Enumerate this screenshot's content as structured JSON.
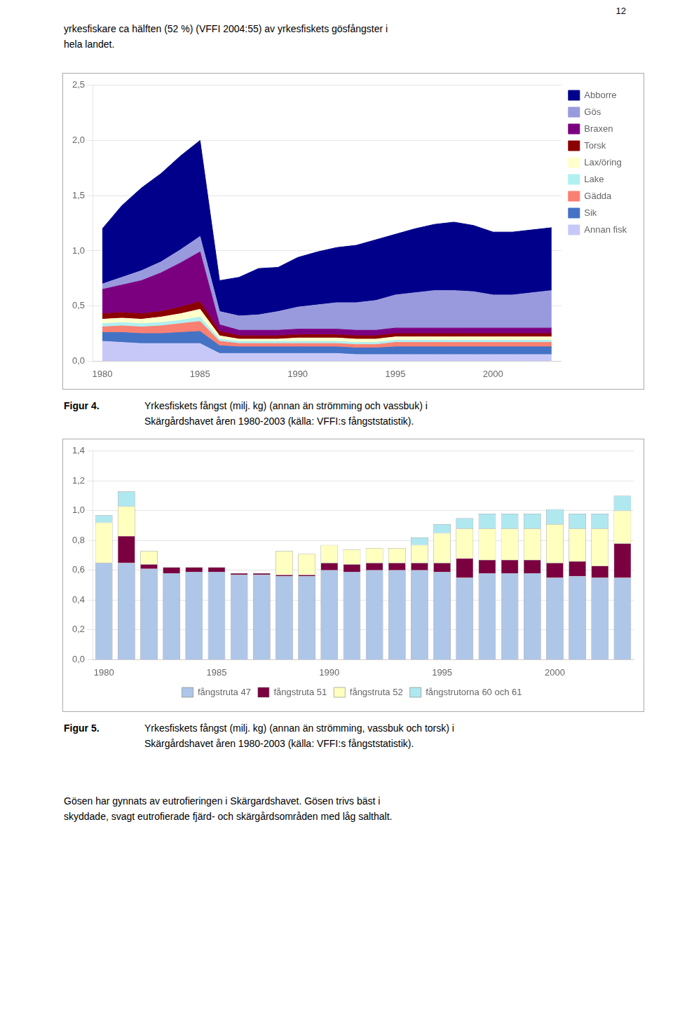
{
  "annotations": [
    "12",
    "yrkesfiskare ca hälften (52 %) (VFFI 2004:55) av yrkesfiskets gösfångster i",
    "hela landet.",
    "Gösen har gynnats av eutrofieringen i Skärgardshavet. Gösen trivs bäst i",
    "skyddade, svagt eutrofierade fjärd- och skärgårdsområden med låg salthalt."
  ],
  "chart_data": [
    {
      "type": "area",
      "title": "Figur 4.",
      "subtitle": "Yrkesfiskets fångst (milj. kg) (annan än strömming och vassbuk) i\nSkärgårdshavet åren 1980-2003 (källa: VFFI:s fångststatistik).",
      "x": [
        1980,
        1981,
        1982,
        1983,
        1984,
        1985,
        1986,
        1987,
        1988,
        1989,
        1990,
        1991,
        1992,
        1993,
        1994,
        1995,
        1996,
        1997,
        1998,
        1999,
        2000,
        2001,
        2002,
        2003
      ],
      "xlim": [
        1979.5,
        2003.5
      ],
      "xticks": [
        1980,
        1985,
        1990,
        1995,
        2000
      ],
      "ylim": [
        0,
        2.5
      ],
      "yticks": [
        {
          "value": 0.0,
          "label": "0,0"
        },
        {
          "value": 0.5,
          "label": "0,5"
        },
        {
          "value": 1.0,
          "label": "1,0"
        },
        {
          "value": 1.5,
          "label": "1,5"
        },
        {
          "value": 2.0,
          "label": "2,0"
        },
        {
          "value": 2.5,
          "label": "2,5"
        }
      ],
      "stacked": true,
      "grid": true,
      "legend": "right",
      "series": [
        {
          "name": "Annan fisk",
          "color": "#c8c8f8",
          "values": [
            0.18,
            0.17,
            0.16,
            0.16,
            0.16,
            0.16,
            0.07,
            0.07,
            0.07,
            0.07,
            0.07,
            0.07,
            0.07,
            0.06,
            0.06,
            0.06,
            0.06,
            0.06,
            0.06,
            0.06,
            0.06,
            0.06,
            0.06,
            0.06
          ]
        },
        {
          "name": "Sik",
          "color": "#4472c4",
          "values": [
            0.08,
            0.09,
            0.09,
            0.09,
            0.1,
            0.11,
            0.07,
            0.06,
            0.06,
            0.06,
            0.06,
            0.06,
            0.06,
            0.06,
            0.06,
            0.07,
            0.07,
            0.07,
            0.07,
            0.07,
            0.07,
            0.07,
            0.07,
            0.07
          ]
        },
        {
          "name": "Gädda",
          "color": "#FA8072",
          "values": [
            0.05,
            0.06,
            0.06,
            0.07,
            0.08,
            0.09,
            0.04,
            0.03,
            0.03,
            0.03,
            0.03,
            0.03,
            0.03,
            0.03,
            0.03,
            0.04,
            0.04,
            0.04,
            0.04,
            0.04,
            0.04,
            0.04,
            0.04,
            0.04
          ]
        },
        {
          "name": "Lake",
          "color": "#b0f0f0",
          "values": [
            0.03,
            0.03,
            0.03,
            0.03,
            0.03,
            0.04,
            0.02,
            0.02,
            0.02,
            0.02,
            0.02,
            0.02,
            0.02,
            0.02,
            0.02,
            0.02,
            0.02,
            0.02,
            0.02,
            0.02,
            0.02,
            0.02,
            0.02,
            0.02
          ]
        },
        {
          "name": "Lax/öring",
          "color": "#ffffcc",
          "values": [
            0.04,
            0.04,
            0.04,
            0.05,
            0.06,
            0.07,
            0.03,
            0.02,
            0.02,
            0.02,
            0.03,
            0.03,
            0.03,
            0.03,
            0.03,
            0.03,
            0.03,
            0.03,
            0.03,
            0.03,
            0.03,
            0.03,
            0.03,
            0.03
          ]
        },
        {
          "name": "Torsk",
          "color": "#8B0000",
          "values": [
            0.05,
            0.05,
            0.05,
            0.05,
            0.06,
            0.07,
            0.04,
            0.03,
            0.03,
            0.03,
            0.03,
            0.03,
            0.03,
            0.03,
            0.03,
            0.03,
            0.03,
            0.03,
            0.03,
            0.03,
            0.03,
            0.03,
            0.03,
            0.03
          ]
        },
        {
          "name": "Braxen",
          "color": "#7B0080",
          "values": [
            0.22,
            0.25,
            0.3,
            0.35,
            0.4,
            0.45,
            0.06,
            0.05,
            0.05,
            0.05,
            0.05,
            0.05,
            0.05,
            0.05,
            0.05,
            0.05,
            0.05,
            0.05,
            0.05,
            0.05,
            0.05,
            0.05,
            0.05,
            0.05
          ]
        },
        {
          "name": "Gös",
          "color": "#9999dd",
          "values": [
            0.05,
            0.07,
            0.09,
            0.1,
            0.12,
            0.14,
            0.12,
            0.13,
            0.14,
            0.17,
            0.2,
            0.22,
            0.24,
            0.25,
            0.27,
            0.3,
            0.32,
            0.34,
            0.34,
            0.33,
            0.3,
            0.3,
            0.32,
            0.34
          ]
        },
        {
          "name": "Abborre",
          "color": "#00008B",
          "values": [
            0.5,
            0.65,
            0.75,
            0.8,
            0.85,
            0.87,
            0.28,
            0.35,
            0.42,
            0.4,
            0.45,
            0.48,
            0.5,
            0.52,
            0.55,
            0.55,
            0.58,
            0.6,
            0.62,
            0.6,
            0.57,
            0.57,
            0.57,
            0.57
          ]
        }
      ]
    },
    {
      "type": "bar",
      "title": "Figur 5.",
      "subtitle": "Yrkesfiskets fångst (milj. kg) (annan än strömming, vassbuk och torsk) i\nSkärgårdshavet åren 1980-2003 (källa: VFFI:s fångststatistik).",
      "x": [
        1980,
        1981,
        1982,
        1983,
        1984,
        1985,
        1986,
        1987,
        1988,
        1989,
        1990,
        1991,
        1992,
        1993,
        1994,
        1995,
        1996,
        1997,
        1998,
        1999,
        2000,
        2001,
        2002,
        2003
      ],
      "xlim": [
        1979.5,
        2003.5
      ],
      "xticks": [
        1980,
        1985,
        1990,
        1995,
        2000
      ],
      "ylim": [
        0,
        1.4
      ],
      "yticks": [
        {
          "value": 0.0,
          "label": "0,0"
        },
        {
          "value": 0.2,
          "label": "0,2"
        },
        {
          "value": 0.4,
          "label": "0,4"
        },
        {
          "value": 0.6,
          "label": "0,6"
        },
        {
          "value": 0.8,
          "label": "0,8"
        },
        {
          "value": 1.0,
          "label": "1,0"
        },
        {
          "value": 1.2,
          "label": "1,2"
        },
        {
          "value": 1.4,
          "label": "1,4"
        }
      ],
      "stacked": true,
      "grid": true,
      "legend": "bottom",
      "series": [
        {
          "name": "fångstruta 47",
          "color": "#aec6e8",
          "values": [
            0.65,
            0.65,
            0.61,
            0.58,
            0.59,
            0.59,
            0.57,
            0.57,
            0.56,
            0.56,
            0.6,
            0.59,
            0.6,
            0.6,
            0.6,
            0.59,
            0.55,
            0.58,
            0.58,
            0.58,
            0.55,
            0.56,
            0.55,
            0.55
          ]
        },
        {
          "name": "fångstruta 51",
          "color": "#7B0040",
          "values": [
            0.0,
            0.18,
            0.03,
            0.04,
            0.03,
            0.03,
            0.01,
            0.01,
            0.01,
            0.01,
            0.05,
            0.05,
            0.05,
            0.05,
            0.05,
            0.06,
            0.13,
            0.09,
            0.09,
            0.09,
            0.1,
            0.1,
            0.08,
            0.23
          ]
        },
        {
          "name": "fångstruta 52",
          "color": "#ffffc0",
          "values": [
            0.27,
            0.2,
            0.09,
            0.0,
            0.0,
            0.0,
            0.0,
            0.0,
            0.16,
            0.14,
            0.12,
            0.1,
            0.1,
            0.1,
            0.12,
            0.2,
            0.2,
            0.21,
            0.21,
            0.21,
            0.26,
            0.22,
            0.25,
            0.22
          ]
        },
        {
          "name": "fångstrutorna 60 och 61",
          "color": "#b0e8f0",
          "values": [
            0.05,
            0.1,
            0.0,
            0.0,
            0.0,
            0.0,
            0.0,
            0.0,
            0.0,
            0.0,
            0.0,
            0.0,
            0.0,
            0.0,
            0.05,
            0.06,
            0.07,
            0.1,
            0.1,
            0.1,
            0.1,
            0.1,
            0.1,
            0.1
          ]
        }
      ]
    }
  ]
}
